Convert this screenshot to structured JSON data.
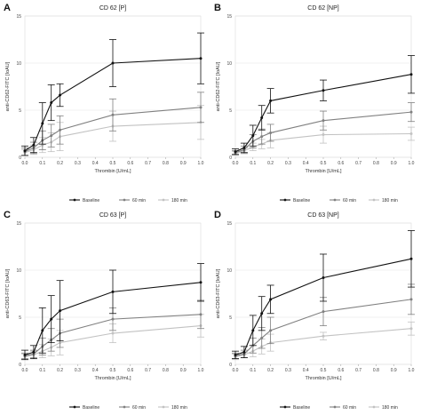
{
  "chart_data": [
    {
      "type": "line",
      "panel_label": "A",
      "title": "CD 62 [P]",
      "xlabel": "Thrombin [U/mL]",
      "ylabel": "anti-CD62-FITC [IoAU]",
      "x": [
        0.0,
        0.05,
        0.1,
        0.15,
        0.2,
        0.5,
        1.0
      ],
      "xticks": [
        "0.0",
        "0.1",
        "0.2",
        "0.3",
        "0.4",
        "0.5",
        "0.6",
        "0.7",
        "0.8",
        "0.9",
        "1.0"
      ],
      "yticks": [
        "0",
        "5",
        "10",
        "15"
      ],
      "xlim": [
        0,
        1
      ],
      "ylim": [
        0,
        15
      ],
      "grid": true,
      "series": [
        {
          "name": "Baseline",
          "color": "#111111",
          "values": [
            0.7,
            1.3,
            3.6,
            5.8,
            6.6,
            10.0,
            10.5
          ],
          "err": [
            0.5,
            0.8,
            2.2,
            1.9,
            1.2,
            2.5,
            2.7
          ]
        },
        {
          "name": "60 min",
          "color": "#808080",
          "values": [
            0.6,
            1.0,
            1.8,
            2.3,
            2.9,
            4.5,
            5.3
          ],
          "err": [
            0.4,
            0.6,
            1.0,
            1.2,
            1.5,
            1.7,
            1.6
          ]
        },
        {
          "name": "180 min",
          "color": "#c2c2c2",
          "values": [
            0.5,
            0.8,
            1.3,
            1.6,
            2.2,
            3.3,
            3.7
          ],
          "err": [
            0.3,
            0.5,
            0.8,
            1.0,
            1.5,
            1.6,
            1.8
          ]
        }
      ],
      "legend": "bottom"
    },
    {
      "type": "line",
      "panel_label": "B",
      "title": "CD 62 [NP]",
      "xlabel": "Thrombin [U/mL]",
      "ylabel": "anti-CD62-FITC [IoAU]",
      "x": [
        0.0,
        0.05,
        0.1,
        0.15,
        0.2,
        0.5,
        1.0
      ],
      "xticks": [
        "0.0",
        "0.1",
        "0.2",
        "0.3",
        "0.4",
        "0.5",
        "0.6",
        "0.7",
        "0.8",
        "0.9",
        "1.0"
      ],
      "yticks": [
        "0",
        "5",
        "10",
        "15"
      ],
      "xlim": [
        0,
        1
      ],
      "ylim": [
        0,
        15
      ],
      "grid": true,
      "series": [
        {
          "name": "Baseline",
          "color": "#111111",
          "values": [
            0.6,
            1.0,
            2.3,
            4.2,
            6.0,
            7.1,
            8.8
          ],
          "err": [
            0.3,
            0.5,
            1.1,
            1.3,
            1.3,
            1.1,
            2.0
          ]
        },
        {
          "name": "60 min",
          "color": "#808080",
          "values": [
            0.5,
            0.8,
            1.7,
            2.2,
            2.6,
            3.9,
            4.8
          ],
          "err": [
            0.2,
            0.4,
            0.7,
            0.8,
            0.9,
            1.0,
            1.0
          ]
        },
        {
          "name": "180 min",
          "color": "#c2c2c2",
          "values": [
            0.4,
            0.7,
            1.1,
            1.4,
            1.8,
            2.4,
            2.5
          ],
          "err": [
            0.2,
            0.3,
            0.4,
            0.5,
            0.8,
            0.9,
            0.7
          ]
        }
      ],
      "legend": "bottom"
    },
    {
      "type": "line",
      "panel_label": "C",
      "title": "CD 63 [P]",
      "xlabel": "Thrombin [U/mL]",
      "ylabel": "anti-CD63-FITC [IoAU]",
      "x": [
        0.0,
        0.05,
        0.1,
        0.15,
        0.2,
        0.5,
        1.0
      ],
      "xticks": [
        "0.0",
        "0.1",
        "0.2",
        "0.3",
        "0.4",
        "0.5",
        "0.6",
        "0.7",
        "0.8",
        "0.9",
        "1.0"
      ],
      "yticks": [
        "0",
        "5",
        "10",
        "15"
      ],
      "xlim": [
        0,
        1
      ],
      "ylim": [
        0,
        15
      ],
      "grid": true,
      "series": [
        {
          "name": "Baseline",
          "color": "#111111",
          "values": [
            1.0,
            1.3,
            3.6,
            4.8,
            5.7,
            7.7,
            8.7
          ],
          "err": [
            0.5,
            0.7,
            2.4,
            2.5,
            3.2,
            2.3,
            2.0
          ]
        },
        {
          "name": "60 min",
          "color": "#808080",
          "values": [
            0.9,
            1.1,
            1.9,
            2.6,
            3.3,
            4.8,
            5.3
          ],
          "err": [
            0.3,
            0.4,
            0.9,
            1.2,
            1.5,
            1.2,
            1.5
          ]
        },
        {
          "name": "180 min",
          "color": "#c2c2c2",
          "values": [
            0.8,
            1.0,
            1.4,
            1.8,
            2.3,
            3.3,
            4.1
          ],
          "err": [
            0.3,
            0.4,
            0.7,
            0.9,
            1.3,
            1.0,
            1.2
          ]
        }
      ],
      "legend": "bottom"
    },
    {
      "type": "line",
      "panel_label": "D",
      "title": "CD 63 [NP]",
      "xlabel": "Thrombin [U/mL]",
      "ylabel": "anti-CD63-FITC [IoAU]",
      "x": [
        0.0,
        0.05,
        0.1,
        0.15,
        0.2,
        0.5,
        1.0
      ],
      "xticks": [
        "0.0",
        "0.1",
        "0.2",
        "0.3",
        "0.4",
        "0.5",
        "0.6",
        "0.7",
        "0.8",
        "0.9",
        "1.0"
      ],
      "yticks": [
        "0",
        "5",
        "10",
        "15"
      ],
      "xlim": [
        0,
        1
      ],
      "ylim": [
        0,
        15
      ],
      "grid": true,
      "series": [
        {
          "name": "Baseline",
          "color": "#111111",
          "values": [
            1.0,
            1.3,
            3.6,
            5.4,
            6.9,
            9.2,
            11.2
          ],
          "err": [
            0.4,
            0.6,
            1.6,
            1.8,
            1.5,
            2.5,
            3.0
          ]
        },
        {
          "name": "60 min",
          "color": "#808080",
          "values": [
            0.9,
            1.1,
            2.0,
            2.8,
            3.6,
            5.6,
            6.9
          ],
          "err": [
            0.3,
            0.4,
            0.8,
            1.1,
            1.4,
            1.5,
            1.6
          ]
        },
        {
          "name": "180 min",
          "color": "#c2c2c2",
          "values": [
            0.8,
            1.0,
            1.4,
            1.9,
            2.3,
            3.0,
            3.8
          ],
          "err": [
            0.3,
            0.3,
            0.6,
            0.8,
            0.9,
            0.4,
            0.7
          ]
        }
      ],
      "legend": "bottom"
    }
  ]
}
